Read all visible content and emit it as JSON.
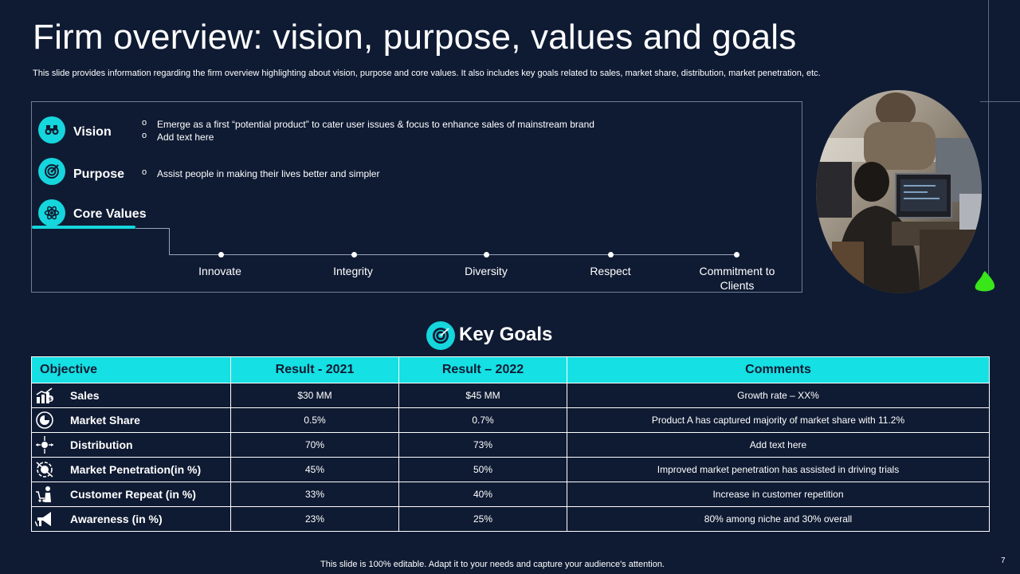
{
  "slide": {
    "title": "Firm overview: vision, purpose, values and goals",
    "subtitle": "This slide provides information regarding the firm overview highlighting about vision, purpose and core values. It also includes key goals related to sales, market share, distribution, market penetration, etc.",
    "footer": "This slide is 100% editable. Adapt it to your needs and capture your audience's attention.",
    "page_number": "7",
    "accent_color": "#15d6dc",
    "background_color": "#0f1b33"
  },
  "overview": {
    "vision": {
      "label": "Vision",
      "icon": "binoculars-icon",
      "bullets": [
        "Emerge as a first “potential product” to cater user issues & focus to enhance sales of mainstream brand",
        "Add text here"
      ]
    },
    "purpose": {
      "label": "Purpose",
      "icon": "target-icon",
      "bullets": [
        "Assist people in making their lives better and simpler"
      ]
    },
    "core_values": {
      "label": "Core Values",
      "icon": "atom-icon",
      "values": [
        "Innovate",
        "Integrity",
        "Diversity",
        "Respect",
        "Commitment to Clients"
      ]
    }
  },
  "key_goals": {
    "title": "Key Goals",
    "icon": "dartboard-icon",
    "headers": [
      "Objective",
      "Result - 2021",
      "Result – 2022",
      "Comments"
    ],
    "rows": [
      {
        "objective": "Sales",
        "icon": "sales-chart-icon",
        "r2021": "$30 MM",
        "r2022": "$45 MM",
        "comment": "Growth rate – XX%"
      },
      {
        "objective": "Market Share",
        "icon": "market-share-icon",
        "r2021": "0.5%",
        "r2022": "0.7%",
        "comment": "Product A has captured majority of market share with 11.2%"
      },
      {
        "objective": "Distribution",
        "icon": "distribution-icon",
        "r2021": "70%",
        "r2022": "73%",
        "comment": "Add text here"
      },
      {
        "objective": "Market Penetration(in %)",
        "icon": "penetration-icon",
        "r2021": "45%",
        "r2022": "50%",
        "comment": "Improved  market penetration has assisted in driving trials"
      },
      {
        "objective": "Customer Repeat (in %)",
        "icon": "customer-cart-icon",
        "r2021": "33%",
        "r2022": "40%",
        "comment": "Increase in customer repetition"
      },
      {
        "objective": "Awareness (in %)",
        "icon": "megaphone-icon",
        "r2021": "23%",
        "r2022": "25%",
        "comment": "80% among niche and 30% overall"
      }
    ]
  }
}
